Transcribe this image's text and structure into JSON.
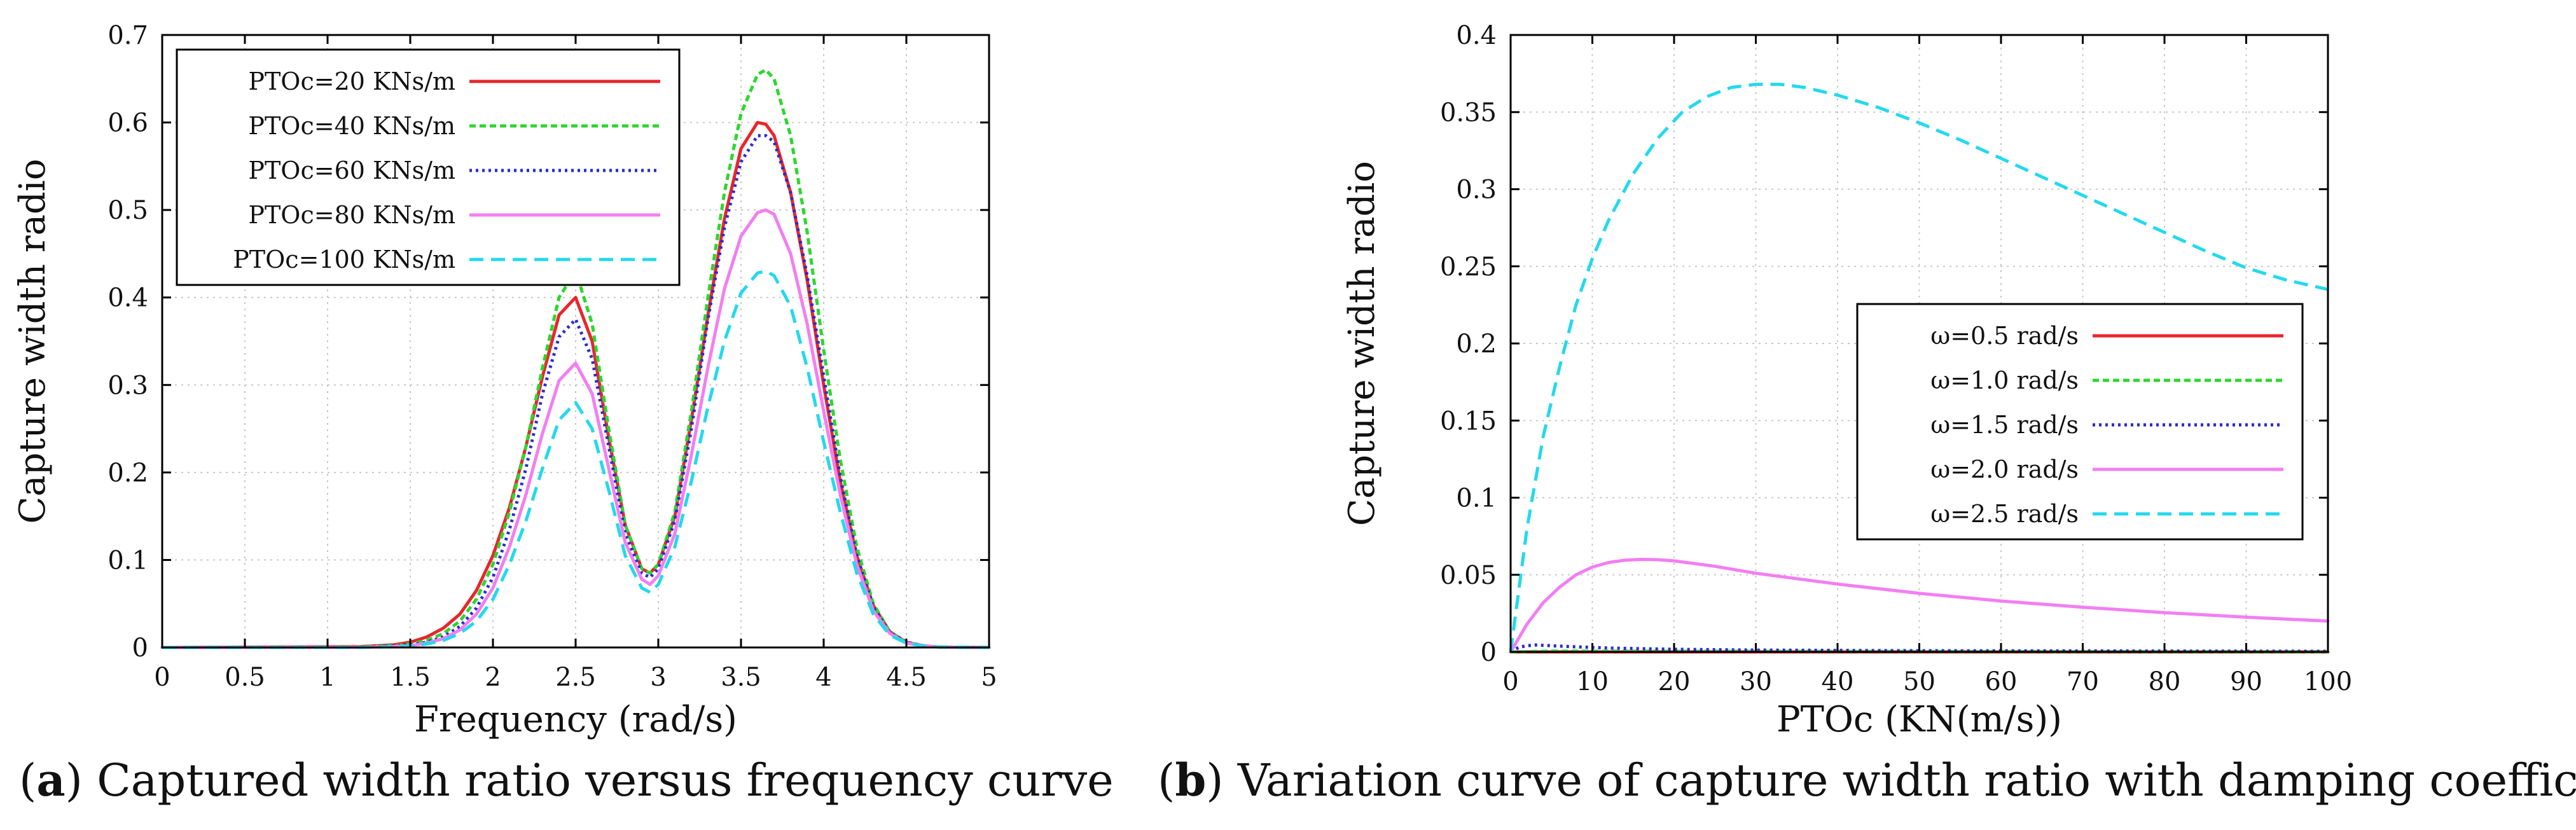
{
  "colors": {
    "red": "#e8262b",
    "green": "#2dd62d",
    "blue": "#2a2ad2",
    "magenta": "#f27ef2",
    "cyan": "#22d9ee",
    "axis": "#000000",
    "grid": "#c8c8c8"
  },
  "captions": [
    {
      "letter": "a",
      "open": "(",
      "close": ")",
      "text": " Captured width ratio versus frequency curve"
    },
    {
      "letter": "b",
      "open": "(",
      "close": ")",
      "text": " Variation curve of capture width ratio with damping coefficient"
    }
  ],
  "chart_data": [
    {
      "type": "line",
      "title": "",
      "xlabel": "Frequency (rad/s)",
      "ylabel": "Capture width radio",
      "xlim": [
        0,
        5
      ],
      "ylim": [
        0,
        0.7
      ],
      "xticks": [
        "0",
        "0.5",
        "1",
        "1.5",
        "2",
        "2.5",
        "3",
        "3.5",
        "4",
        "4.5",
        "5"
      ],
      "yticks": [
        "0",
        "0.1",
        "0.2",
        "0.3",
        "0.4",
        "0.5",
        "0.6",
        "0.7"
      ],
      "grid": true,
      "legend_position": "top-left",
      "series": [
        {
          "name": "PTOc=20 KNs/m",
          "color": "red",
          "dash": "solid",
          "x": [
            0,
            1.2,
            1.4,
            1.5,
            1.6,
            1.7,
            1.8,
            1.9,
            2.0,
            2.1,
            2.2,
            2.3,
            2.4,
            2.5,
            2.6,
            2.7,
            2.8,
            2.9,
            2.95,
            3.0,
            3.1,
            3.2,
            3.3,
            3.4,
            3.5,
            3.6,
            3.65,
            3.7,
            3.8,
            3.9,
            4.0,
            4.1,
            4.2,
            4.3,
            4.4,
            4.5,
            4.6,
            4.7,
            5.0
          ],
          "y": [
            0,
            0.001,
            0.003,
            0.006,
            0.012,
            0.022,
            0.038,
            0.065,
            0.105,
            0.16,
            0.23,
            0.31,
            0.38,
            0.4,
            0.35,
            0.24,
            0.14,
            0.09,
            0.085,
            0.095,
            0.15,
            0.26,
            0.38,
            0.49,
            0.57,
            0.6,
            0.598,
            0.585,
            0.52,
            0.42,
            0.3,
            0.19,
            0.105,
            0.048,
            0.018,
            0.006,
            0.002,
            0.0005,
            0
          ]
        },
        {
          "name": "PTOc=40 KNs/m",
          "color": "green",
          "dash": "dense",
          "x": [
            0,
            1.2,
            1.4,
            1.5,
            1.6,
            1.7,
            1.8,
            1.9,
            2.0,
            2.1,
            2.2,
            2.3,
            2.4,
            2.5,
            2.6,
            2.7,
            2.8,
            2.9,
            2.95,
            3.0,
            3.1,
            3.2,
            3.3,
            3.4,
            3.5,
            3.6,
            3.65,
            3.7,
            3.8,
            3.9,
            4.0,
            4.1,
            4.2,
            4.3,
            4.4,
            4.5,
            4.6,
            4.7,
            5.0
          ],
          "y": [
            0,
            0.0005,
            0.002,
            0.004,
            0.008,
            0.016,
            0.03,
            0.055,
            0.095,
            0.155,
            0.23,
            0.32,
            0.4,
            0.43,
            0.37,
            0.25,
            0.14,
            0.09,
            0.085,
            0.095,
            0.155,
            0.27,
            0.4,
            0.52,
            0.61,
            0.655,
            0.66,
            0.65,
            0.585,
            0.475,
            0.34,
            0.215,
            0.115,
            0.05,
            0.018,
            0.006,
            0.002,
            0.0005,
            0
          ]
        },
        {
          "name": "PTOc=60 KNs/m",
          "color": "blue",
          "dash": "dotted",
          "x": [
            0,
            1.2,
            1.4,
            1.5,
            1.6,
            1.7,
            1.8,
            1.9,
            2.0,
            2.1,
            2.2,
            2.3,
            2.4,
            2.5,
            2.6,
            2.7,
            2.8,
            2.9,
            2.95,
            3.0,
            3.1,
            3.2,
            3.3,
            3.4,
            3.5,
            3.6,
            3.65,
            3.7,
            3.8,
            3.9,
            4.0,
            4.1,
            4.2,
            4.3,
            4.4,
            4.5,
            4.6,
            4.7,
            5.0
          ],
          "y": [
            0,
            0.0003,
            0.0015,
            0.003,
            0.006,
            0.012,
            0.024,
            0.045,
            0.08,
            0.135,
            0.205,
            0.29,
            0.355,
            0.375,
            0.33,
            0.23,
            0.13,
            0.085,
            0.08,
            0.09,
            0.145,
            0.25,
            0.375,
            0.48,
            0.555,
            0.585,
            0.585,
            0.578,
            0.52,
            0.425,
            0.31,
            0.195,
            0.105,
            0.046,
            0.017,
            0.006,
            0.002,
            0.0005,
            0
          ]
        },
        {
          "name": "PTOc=80 KNs/m",
          "color": "magenta",
          "dash": "solid",
          "x": [
            0,
            1.2,
            1.4,
            1.5,
            1.6,
            1.7,
            1.8,
            1.9,
            2.0,
            2.1,
            2.2,
            2.3,
            2.4,
            2.5,
            2.6,
            2.7,
            2.8,
            2.9,
            2.95,
            3.0,
            3.1,
            3.2,
            3.3,
            3.4,
            3.5,
            3.6,
            3.65,
            3.7,
            3.8,
            3.9,
            4.0,
            4.1,
            4.2,
            4.3,
            4.4,
            4.5,
            4.6,
            4.7,
            5.0
          ],
          "y": [
            0,
            0.0002,
            0.001,
            0.002,
            0.005,
            0.01,
            0.02,
            0.038,
            0.068,
            0.115,
            0.175,
            0.245,
            0.305,
            0.325,
            0.29,
            0.205,
            0.12,
            0.078,
            0.072,
            0.082,
            0.13,
            0.22,
            0.32,
            0.41,
            0.47,
            0.497,
            0.5,
            0.495,
            0.45,
            0.37,
            0.27,
            0.175,
            0.095,
            0.042,
            0.016,
            0.005,
            0.002,
            0.0005,
            0
          ]
        },
        {
          "name": "PTOc=100 KNs/m",
          "color": "cyan",
          "dash": "dashed",
          "x": [
            0,
            1.2,
            1.4,
            1.5,
            1.6,
            1.7,
            1.8,
            1.9,
            2.0,
            2.1,
            2.2,
            2.3,
            2.4,
            2.5,
            2.6,
            2.7,
            2.8,
            2.9,
            2.95,
            3.0,
            3.1,
            3.2,
            3.3,
            3.4,
            3.5,
            3.6,
            3.65,
            3.7,
            3.8,
            3.9,
            4.0,
            4.1,
            4.2,
            4.3,
            4.4,
            4.5,
            4.6,
            4.7,
            5.0
          ],
          "y": [
            0,
            0.0002,
            0.0008,
            0.0015,
            0.004,
            0.008,
            0.016,
            0.03,
            0.055,
            0.095,
            0.145,
            0.205,
            0.26,
            0.28,
            0.25,
            0.18,
            0.105,
            0.068,
            0.063,
            0.072,
            0.115,
            0.19,
            0.275,
            0.35,
            0.405,
            0.428,
            0.43,
            0.425,
            0.39,
            0.32,
            0.235,
            0.155,
            0.085,
            0.038,
            0.014,
            0.005,
            0.0015,
            0.0004,
            0
          ]
        }
      ]
    },
    {
      "type": "line",
      "title": "",
      "xlabel": "PTOc (KN(m/s))",
      "ylabel": "Capture width radio",
      "xlim": [
        0,
        100
      ],
      "ylim": [
        0,
        0.4
      ],
      "xticks": [
        "0",
        "10",
        "20",
        "30",
        "40",
        "50",
        "60",
        "70",
        "80",
        "90",
        "100"
      ],
      "yticks": [
        "0",
        "0.05",
        "0.1",
        "0.15",
        "0.2",
        "0.25",
        "0.3",
        "0.35",
        "0.4"
      ],
      "grid": true,
      "legend_position": "center-right",
      "series": [
        {
          "name": "ω=0.5 rad/s",
          "color": "red",
          "dash": "solid",
          "x": [
            0,
            100
          ],
          "y": [
            0,
            0
          ]
        },
        {
          "name": "ω=1.0 rad/s",
          "color": "green",
          "dash": "dense",
          "x": [
            0,
            5,
            100
          ],
          "y": [
            0,
            0.0005,
            0.0001
          ]
        },
        {
          "name": "ω=1.5 rad/s",
          "color": "blue",
          "dash": "dotted",
          "x": [
            0,
            1,
            2,
            3,
            5,
            8,
            12,
            20,
            30,
            50,
            100
          ],
          "y": [
            0,
            0.003,
            0.004,
            0.0045,
            0.004,
            0.0033,
            0.0025,
            0.0017,
            0.0012,
            0.0008,
            0.0004
          ]
        },
        {
          "name": "ω=2.0 rad/s",
          "color": "magenta",
          "dash": "solid",
          "x": [
            0,
            2,
            4,
            6,
            8,
            10,
            12,
            14,
            16,
            18,
            20,
            25,
            30,
            40,
            50,
            60,
            70,
            80,
            90,
            100
          ],
          "y": [
            0,
            0.018,
            0.032,
            0.042,
            0.05,
            0.055,
            0.058,
            0.0595,
            0.06,
            0.0598,
            0.059,
            0.0555,
            0.051,
            0.044,
            0.038,
            0.033,
            0.029,
            0.0255,
            0.0225,
            0.02
          ]
        },
        {
          "name": "ω=2.5 rad/s",
          "color": "cyan",
          "dash": "dashed",
          "x": [
            0,
            2,
            4,
            6,
            8,
            10,
            12,
            15,
            18,
            21,
            24,
            27,
            30,
            33,
            36,
            40,
            45,
            50,
            55,
            60,
            65,
            70,
            75,
            80,
            85,
            90,
            95,
            100
          ],
          "y": [
            0,
            0.08,
            0.14,
            0.185,
            0.225,
            0.255,
            0.28,
            0.31,
            0.333,
            0.35,
            0.36,
            0.366,
            0.368,
            0.368,
            0.366,
            0.361,
            0.353,
            0.343,
            0.332,
            0.32,
            0.308,
            0.296,
            0.284,
            0.272,
            0.26,
            0.249,
            0.241,
            0.235
          ]
        }
      ]
    }
  ]
}
